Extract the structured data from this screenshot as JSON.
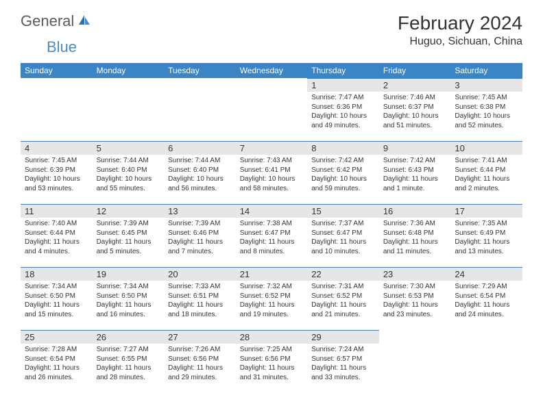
{
  "logo": {
    "text1": "General",
    "text2": "Blue"
  },
  "title": "February 2024",
  "location": "Huguo, Sichuan, China",
  "colors": {
    "header_bg": "#3b85c4",
    "header_text": "#ffffff",
    "daynum_bg": "#e6e6e6",
    "border": "#4a7baf",
    "logo_grey": "#5a5a5a",
    "logo_blue": "#4a8cc7"
  },
  "weekdays": [
    "Sunday",
    "Monday",
    "Tuesday",
    "Wednesday",
    "Thursday",
    "Friday",
    "Saturday"
  ],
  "weeks": [
    [
      null,
      null,
      null,
      null,
      {
        "n": "1",
        "sr": "Sunrise: 7:47 AM",
        "ss": "Sunset: 6:36 PM",
        "dl": "Daylight: 10 hours and 49 minutes."
      },
      {
        "n": "2",
        "sr": "Sunrise: 7:46 AM",
        "ss": "Sunset: 6:37 PM",
        "dl": "Daylight: 10 hours and 51 minutes."
      },
      {
        "n": "3",
        "sr": "Sunrise: 7:45 AM",
        "ss": "Sunset: 6:38 PM",
        "dl": "Daylight: 10 hours and 52 minutes."
      }
    ],
    [
      {
        "n": "4",
        "sr": "Sunrise: 7:45 AM",
        "ss": "Sunset: 6:39 PM",
        "dl": "Daylight: 10 hours and 53 minutes."
      },
      {
        "n": "5",
        "sr": "Sunrise: 7:44 AM",
        "ss": "Sunset: 6:40 PM",
        "dl": "Daylight: 10 hours and 55 minutes."
      },
      {
        "n": "6",
        "sr": "Sunrise: 7:44 AM",
        "ss": "Sunset: 6:40 PM",
        "dl": "Daylight: 10 hours and 56 minutes."
      },
      {
        "n": "7",
        "sr": "Sunrise: 7:43 AM",
        "ss": "Sunset: 6:41 PM",
        "dl": "Daylight: 10 hours and 58 minutes."
      },
      {
        "n": "8",
        "sr": "Sunrise: 7:42 AM",
        "ss": "Sunset: 6:42 PM",
        "dl": "Daylight: 10 hours and 59 minutes."
      },
      {
        "n": "9",
        "sr": "Sunrise: 7:42 AM",
        "ss": "Sunset: 6:43 PM",
        "dl": "Daylight: 11 hours and 1 minute."
      },
      {
        "n": "10",
        "sr": "Sunrise: 7:41 AM",
        "ss": "Sunset: 6:44 PM",
        "dl": "Daylight: 11 hours and 2 minutes."
      }
    ],
    [
      {
        "n": "11",
        "sr": "Sunrise: 7:40 AM",
        "ss": "Sunset: 6:44 PM",
        "dl": "Daylight: 11 hours and 4 minutes."
      },
      {
        "n": "12",
        "sr": "Sunrise: 7:39 AM",
        "ss": "Sunset: 6:45 PM",
        "dl": "Daylight: 11 hours and 5 minutes."
      },
      {
        "n": "13",
        "sr": "Sunrise: 7:39 AM",
        "ss": "Sunset: 6:46 PM",
        "dl": "Daylight: 11 hours and 7 minutes."
      },
      {
        "n": "14",
        "sr": "Sunrise: 7:38 AM",
        "ss": "Sunset: 6:47 PM",
        "dl": "Daylight: 11 hours and 8 minutes."
      },
      {
        "n": "15",
        "sr": "Sunrise: 7:37 AM",
        "ss": "Sunset: 6:47 PM",
        "dl": "Daylight: 11 hours and 10 minutes."
      },
      {
        "n": "16",
        "sr": "Sunrise: 7:36 AM",
        "ss": "Sunset: 6:48 PM",
        "dl": "Daylight: 11 hours and 11 minutes."
      },
      {
        "n": "17",
        "sr": "Sunrise: 7:35 AM",
        "ss": "Sunset: 6:49 PM",
        "dl": "Daylight: 11 hours and 13 minutes."
      }
    ],
    [
      {
        "n": "18",
        "sr": "Sunrise: 7:34 AM",
        "ss": "Sunset: 6:50 PM",
        "dl": "Daylight: 11 hours and 15 minutes."
      },
      {
        "n": "19",
        "sr": "Sunrise: 7:34 AM",
        "ss": "Sunset: 6:50 PM",
        "dl": "Daylight: 11 hours and 16 minutes."
      },
      {
        "n": "20",
        "sr": "Sunrise: 7:33 AM",
        "ss": "Sunset: 6:51 PM",
        "dl": "Daylight: 11 hours and 18 minutes."
      },
      {
        "n": "21",
        "sr": "Sunrise: 7:32 AM",
        "ss": "Sunset: 6:52 PM",
        "dl": "Daylight: 11 hours and 19 minutes."
      },
      {
        "n": "22",
        "sr": "Sunrise: 7:31 AM",
        "ss": "Sunset: 6:52 PM",
        "dl": "Daylight: 11 hours and 21 minutes."
      },
      {
        "n": "23",
        "sr": "Sunrise: 7:30 AM",
        "ss": "Sunset: 6:53 PM",
        "dl": "Daylight: 11 hours and 23 minutes."
      },
      {
        "n": "24",
        "sr": "Sunrise: 7:29 AM",
        "ss": "Sunset: 6:54 PM",
        "dl": "Daylight: 11 hours and 24 minutes."
      }
    ],
    [
      {
        "n": "25",
        "sr": "Sunrise: 7:28 AM",
        "ss": "Sunset: 6:54 PM",
        "dl": "Daylight: 11 hours and 26 minutes."
      },
      {
        "n": "26",
        "sr": "Sunrise: 7:27 AM",
        "ss": "Sunset: 6:55 PM",
        "dl": "Daylight: 11 hours and 28 minutes."
      },
      {
        "n": "27",
        "sr": "Sunrise: 7:26 AM",
        "ss": "Sunset: 6:56 PM",
        "dl": "Daylight: 11 hours and 29 minutes."
      },
      {
        "n": "28",
        "sr": "Sunrise: 7:25 AM",
        "ss": "Sunset: 6:56 PM",
        "dl": "Daylight: 11 hours and 31 minutes."
      },
      {
        "n": "29",
        "sr": "Sunrise: 7:24 AM",
        "ss": "Sunset: 6:57 PM",
        "dl": "Daylight: 11 hours and 33 minutes."
      },
      null,
      null
    ]
  ]
}
